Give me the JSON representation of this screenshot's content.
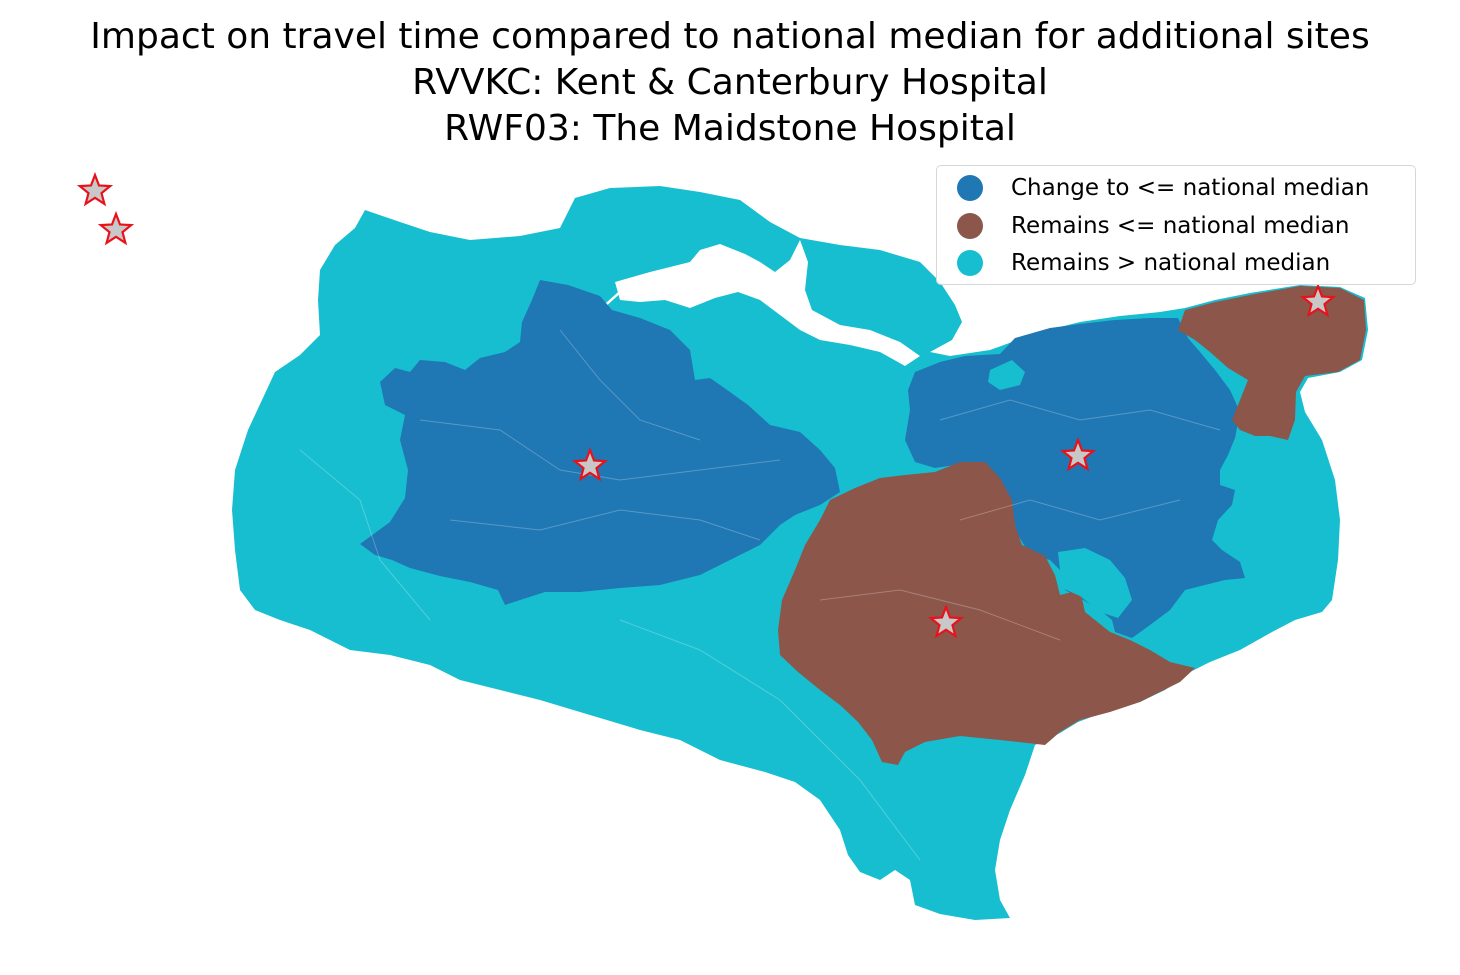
{
  "title": {
    "line1": "Impact on travel time compared to national median for additional sites",
    "line2": "RVVKC: Kent & Canterbury Hospital",
    "line3": "RWF03: The Maidstone Hospital"
  },
  "legend": {
    "placement": "top-right",
    "items": [
      {
        "label": "Change to <= national median",
        "color": "#1f77b4"
      },
      {
        "label": "Remains <= national median",
        "color": "#8c564b"
      },
      {
        "label": "Remains > national median",
        "color": "#17becf"
      }
    ]
  },
  "map": {
    "region_colors": {
      "change_to_le_median": "#1f77b4",
      "remains_le_median": "#8c564b",
      "remains_gt_median": "#17becf"
    },
    "site_marker": {
      "icon": "star-icon",
      "fill": "#c8c8c8",
      "stroke": "#e8131a"
    },
    "site_count": 6
  }
}
